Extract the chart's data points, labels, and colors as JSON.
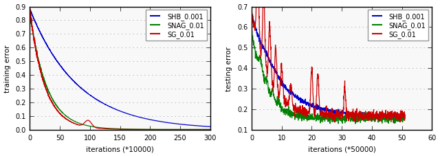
{
  "left": {
    "xlabel": "iterations (*10000)",
    "ylabel": "training error",
    "xlim": [
      0,
      300
    ],
    "ylim": [
      0.0,
      0.9
    ],
    "yticks": [
      0.0,
      0.1,
      0.2,
      0.3,
      0.4,
      0.5,
      0.6,
      0.7,
      0.8,
      0.9
    ],
    "xticks": [
      0,
      50,
      100,
      150,
      200,
      250,
      300
    ],
    "legend": [
      "SHB_0.001",
      "SNAG_0.01",
      "SG_0.01"
    ],
    "colors": [
      "#0000cc",
      "#008000",
      "#cc0000"
    ]
  },
  "right": {
    "xlabel": "iterations (*50000)",
    "ylabel": "testing error",
    "xlim": [
      0,
      60
    ],
    "ylim": [
      0.1,
      0.7
    ],
    "yticks": [
      0.1,
      0.2,
      0.3,
      0.4,
      0.5,
      0.6,
      0.7
    ],
    "xticks": [
      0,
      10,
      20,
      30,
      40,
      50,
      60
    ],
    "legend": [
      "SHB_0.001",
      "SNAG_0.01",
      "SG_0.01"
    ],
    "colors": [
      "#0000cc",
      "#008000",
      "#cc0000"
    ]
  },
  "bg_color": "#f8f8f8",
  "grid_color": "#aaaaaa"
}
